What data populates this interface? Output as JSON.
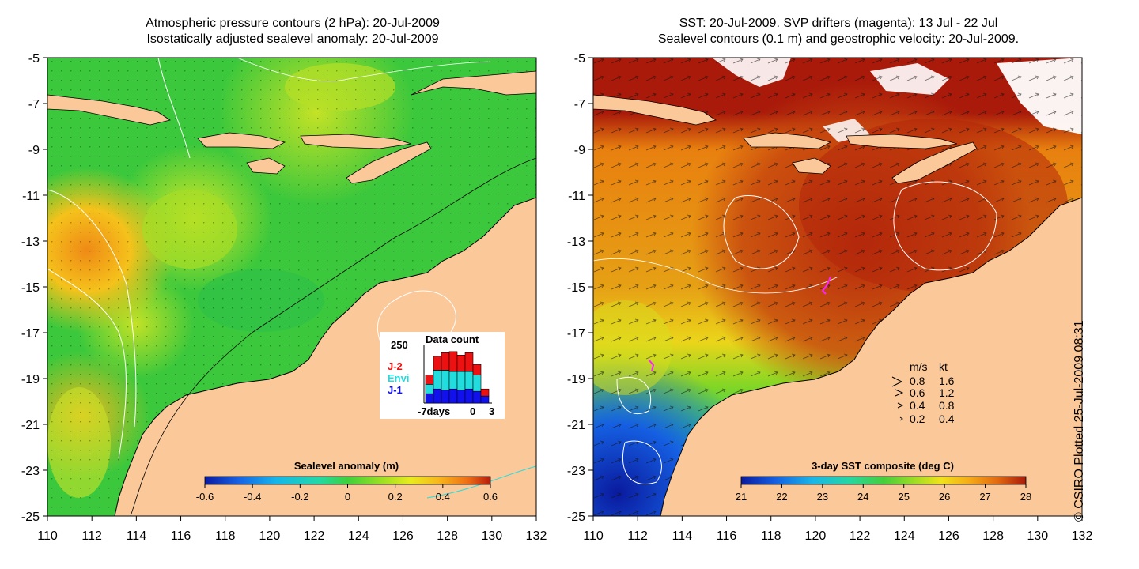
{
  "left_panel": {
    "title_line1": "Atmospheric pressure contours (2 hPa): 20-Jul-2009",
    "title_line2": "Isostatically adjusted sealevel anomaly: 20-Jul-2009",
    "colorbar": {
      "title": "Sealevel anomaly (m)",
      "ticks": [
        "-0.6",
        "-0.4",
        "-0.2",
        "0",
        "0.2",
        "0.4",
        "0.6"
      ]
    },
    "inset": {
      "title": "Data count",
      "y_max_label": "250",
      "x_labels": [
        "-7days",
        "0",
        "3"
      ],
      "legend": [
        {
          "label": "J-2",
          "color": "#ee1111"
        },
        {
          "label": "Envi",
          "color": "#22dddd"
        },
        {
          "label": "J-1",
          "color": "#1111ee"
        }
      ],
      "bars": [
        {
          "j1": 40,
          "envi": 40,
          "j2": 40
        },
        {
          "j1": 60,
          "envi": 80,
          "j2": 60
        },
        {
          "j1": 55,
          "envi": 85,
          "j2": 75
        },
        {
          "j1": 60,
          "envi": 75,
          "j2": 85
        },
        {
          "j1": 55,
          "envi": 80,
          "j2": 70
        },
        {
          "j1": 60,
          "envi": 75,
          "j2": 80
        },
        {
          "j1": 50,
          "envi": 70,
          "j2": 45
        },
        {
          "j1": 30,
          "envi": 0,
          "j2": 30
        }
      ]
    }
  },
  "right_panel": {
    "title_line1": "SST: 20-Jul-2009. SVP drifters (magenta): 13 Jul - 22 Jul",
    "title_line2": "Sealevel contours (0.1 m) and geostrophic velocity: 20-Jul-2009.",
    "colorbar": {
      "title": "3-day SST composite (deg C)",
      "ticks": [
        "21",
        "22",
        "23",
        "24",
        "25",
        "26",
        "27",
        "28"
      ]
    },
    "velocity_legend": {
      "header_ms": "m/s",
      "header_kt": "kt",
      "rows": [
        {
          "ms": "0.8",
          "kt": "1.6"
        },
        {
          "ms": "0.6",
          "kt": "1.2"
        },
        {
          "ms": "0.4",
          "kt": "0.8"
        },
        {
          "ms": "0.2",
          "kt": "0.4"
        }
      ]
    }
  },
  "axes": {
    "lat_ticks": [
      "-5",
      "-7",
      "-9",
      "-11",
      "-13",
      "-15",
      "-17",
      "-19",
      "-21",
      "-23",
      "-25"
    ],
    "lon_ticks": [
      "110",
      "112",
      "114",
      "116",
      "118",
      "120",
      "122",
      "124",
      "126",
      "128",
      "130",
      "132"
    ]
  },
  "copyright": "© CSIRO Plotted 25-Jul-2009 08:31",
  "colors": {
    "land": "#fbc89a",
    "sla_ramp": [
      "#0a1aa0",
      "#1763e6",
      "#15b6ea",
      "#22d9a6",
      "#3ed13a",
      "#9ce023",
      "#e8ec1d",
      "#f8b61b",
      "#ef6f14",
      "#b81b0c"
    ],
    "sst_ramp": [
      "#0a1a9e",
      "#155fe2",
      "#19b6e8",
      "#26d6a2",
      "#45cf3b",
      "#a8de22",
      "#f0e31a",
      "#f5ac17",
      "#e36a10",
      "#a91a0a"
    ]
  }
}
